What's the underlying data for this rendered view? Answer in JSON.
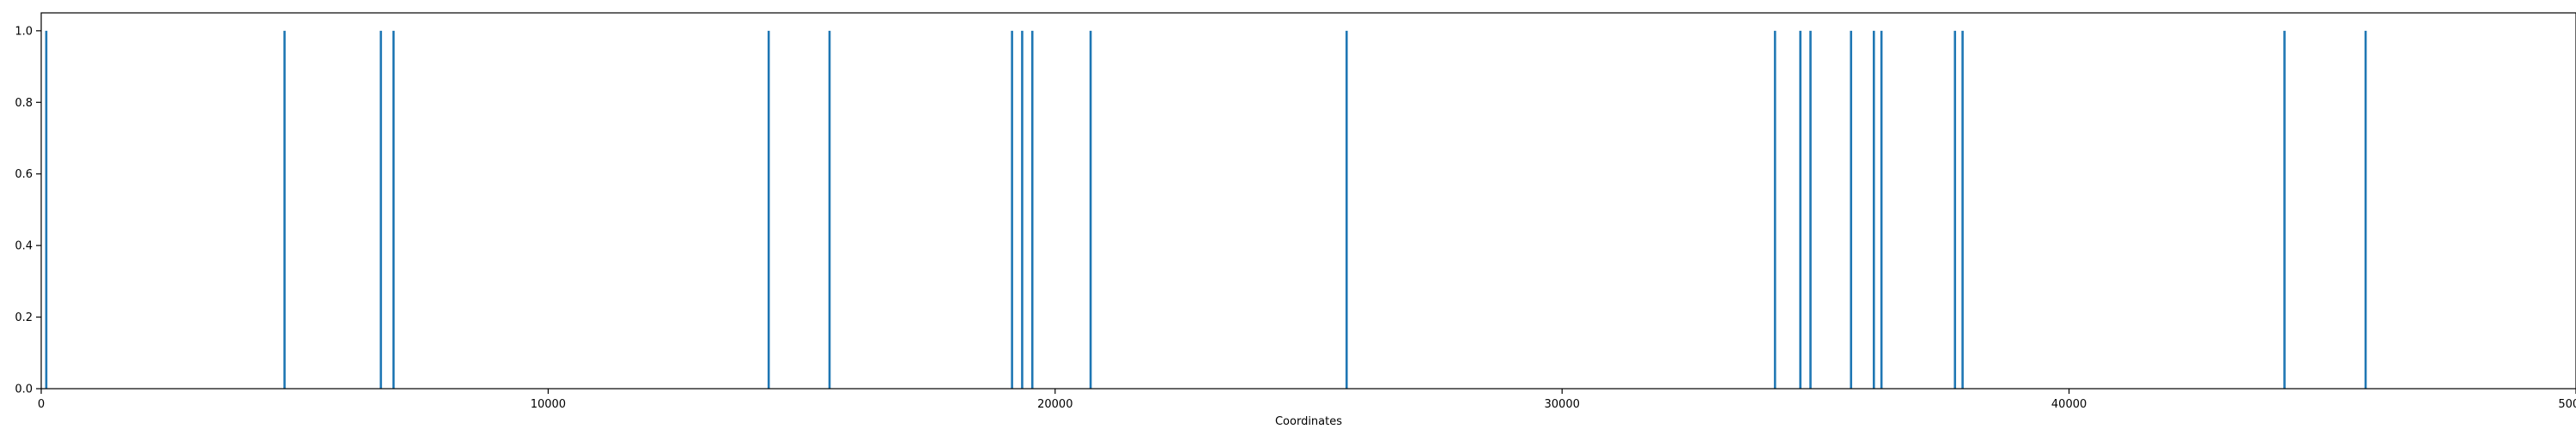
{
  "chart_data": {
    "type": "bar",
    "title": "",
    "xlabel": "Coordinates",
    "ylabel": "",
    "xlim": [
      0,
      50000
    ],
    "ylim": [
      0,
      1.05
    ],
    "grid": false,
    "legend": "none",
    "colors": {
      "bar": "#1f77b4",
      "axis": "#000000",
      "background": "#ffffff"
    },
    "x_ticks": [
      {
        "value": 0,
        "label": "0"
      },
      {
        "value": 10000,
        "label": "10000"
      },
      {
        "value": 20000,
        "label": "20000"
      },
      {
        "value": 30000,
        "label": "30000"
      },
      {
        "value": 40000,
        "label": "40000"
      },
      {
        "value": 50000,
        "label": "50000"
      }
    ],
    "y_ticks": [
      {
        "value": 0,
        "label": "0.0"
      },
      {
        "value": 0.2,
        "label": "0.2"
      },
      {
        "value": 0.4,
        "label": "0.4"
      },
      {
        "value": 0.6,
        "label": "0.6"
      },
      {
        "value": 0.8,
        "label": "0.8"
      },
      {
        "value": 1.0,
        "label": "1.0"
      }
    ],
    "x": [
      100,
      4800,
      6700,
      6950,
      14350,
      15550,
      19150,
      19350,
      19550,
      20700,
      25750,
      34200,
      34700,
      34900,
      35700,
      36150,
      36300,
      37750,
      37900,
      44250,
      45850
    ],
    "values": [
      1,
      1,
      1,
      1,
      1,
      1,
      1,
      1,
      1,
      1,
      1,
      1,
      1,
      1,
      1,
      1,
      1,
      1,
      1,
      1,
      1
    ]
  }
}
